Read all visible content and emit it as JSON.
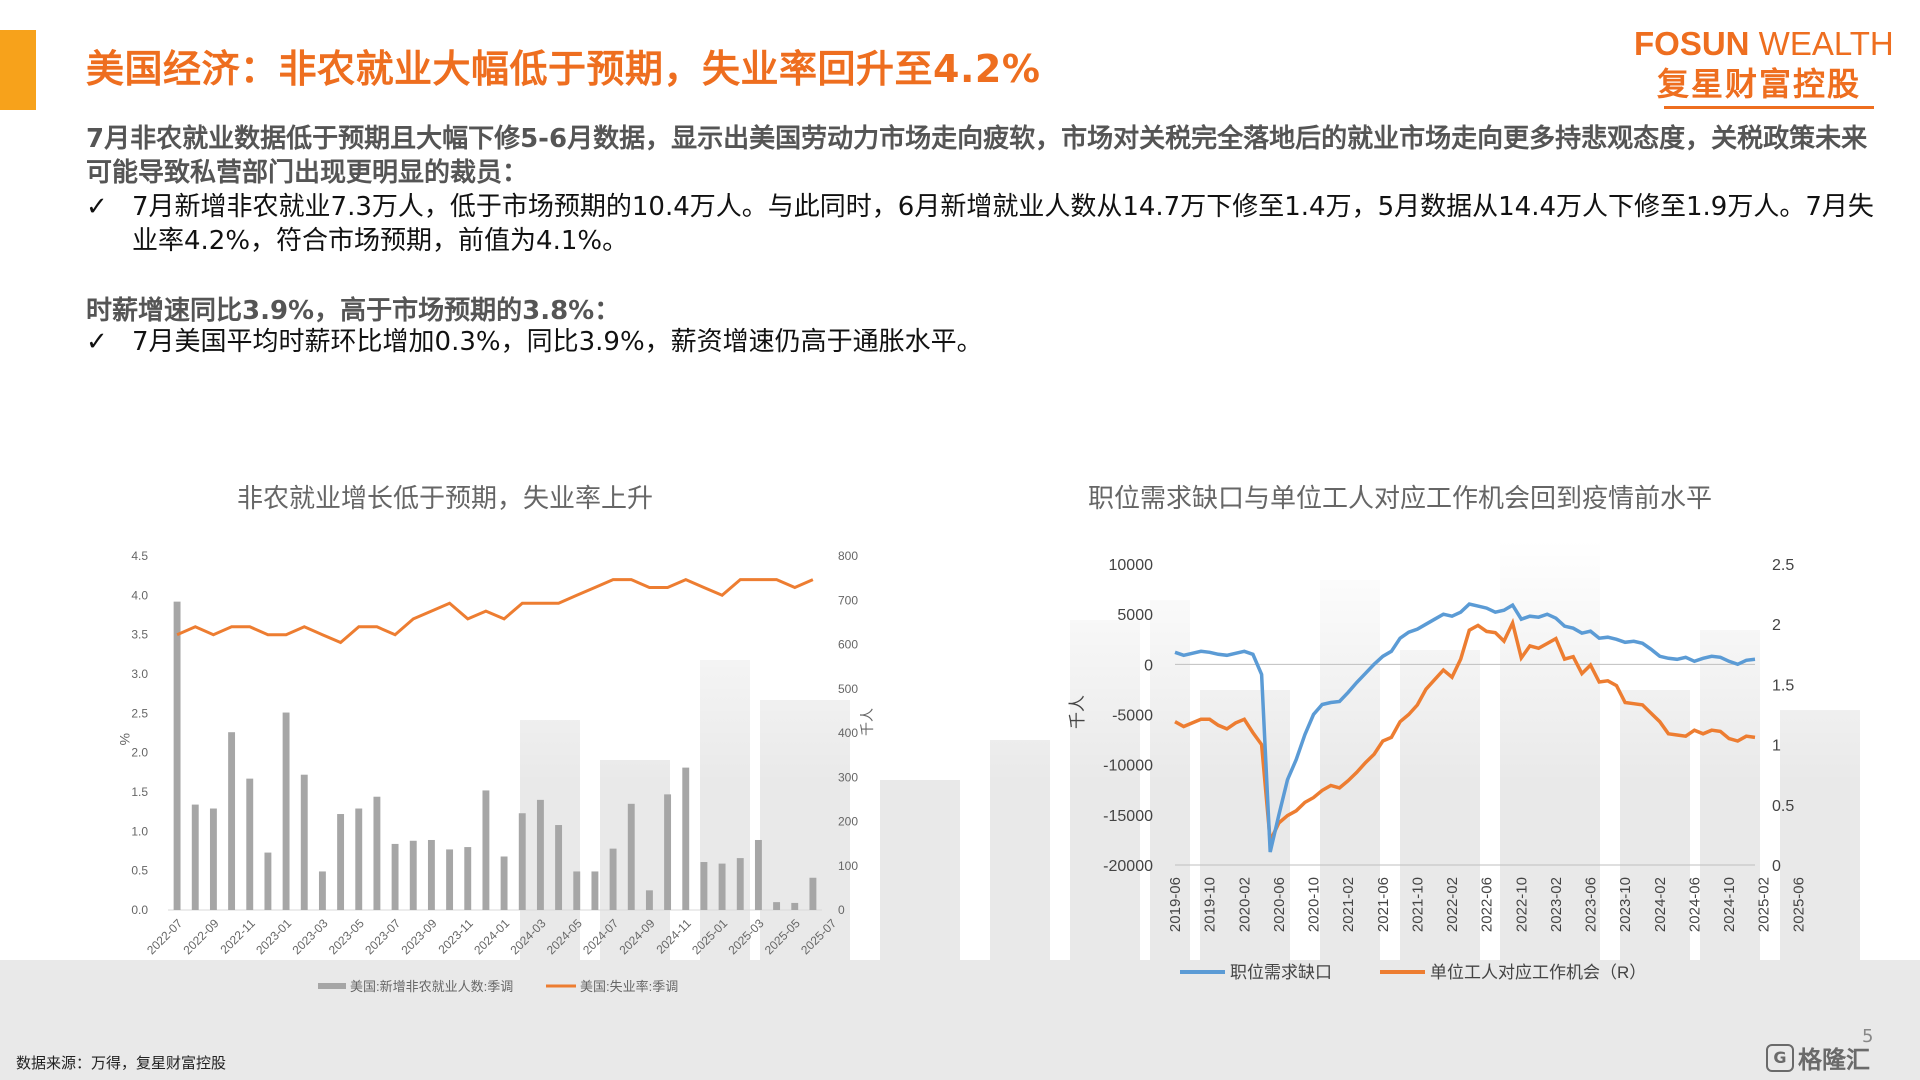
{
  "page": {
    "title": "美国经济：非农就业大幅低于预期，失业率回升至4.2%",
    "logo_en_bold": "FOSUN",
    "logo_en_light": "WEALTH",
    "logo_cn": "复星财富控股",
    "intro": "7月非农就业数据低于预期且大幅下修5-6月数据，显示出美国劳动力市场走向疲软，市场对关税完全落地后的就业市场走向更多持悲观态度，关税政策未来可能导致私营部门出现更明显的裁员：",
    "bullet_mark": "✓",
    "bullet1": "7月新增非农就业7.3万人，低于市场预期的10.4万人。与此同时，6月新增就业人数从14.7万下修至1.4万，5月数据从14.4万人下修至1.9万人。7月失业率4.2%，符合市场预期，前值为4.1%。",
    "sub_heading": "时薪增速同比3.9%，高于市场预期的3.8%：",
    "bullet2": "7月美国平均时薪环比增加0.3%，同比3.9%，薪资增速仍高于通胀水平。",
    "footer_note": "数据来源：万得，复星财富控股",
    "page_number": "5",
    "watermark_text": "格隆汇",
    "watermark_icon": "G"
  },
  "colors": {
    "orange": "#ed7d31",
    "blue": "#5b9bd5",
    "gray_bar": "#a6a6a6",
    "title_orange": "#ee6e1f"
  },
  "chart_data": [
    {
      "type": "bar+line",
      "title": "非农就业增长低于预期，失业率上升",
      "ylabel_left": "%",
      "ylabel_right": "千人",
      "ylim_left": [
        0,
        4.5
      ],
      "ylim_right": [
        0,
        800
      ],
      "left_ticks": [
        "0.0",
        "0.5",
        "1.0",
        "1.5",
        "2.0",
        "2.5",
        "3.0",
        "3.5",
        "4.0",
        "4.5"
      ],
      "right_ticks": [
        "0",
        "100",
        "200",
        "300",
        "400",
        "500",
        "600",
        "700",
        "800"
      ],
      "x_tick_labels": [
        "2022-07",
        "2022-09",
        "2022-11",
        "2023-01",
        "2023-03",
        "2023-05",
        "2023-07",
        "2023-09",
        "2023-11",
        "2024-01",
        "2024-03",
        "2024-05",
        "2024-07",
        "2024-09",
        "2024-11",
        "2025-01",
        "2025-03",
        "2025-05",
        "2025-07"
      ],
      "series": [
        {
          "name": "美国:新增非农就业人数:季调",
          "kind": "bar",
          "axis": "left",
          "values": [
            3.92,
            1.34,
            1.29,
            2.26,
            1.67,
            0.73,
            2.51,
            1.72,
            0.49,
            1.22,
            1.29,
            1.44,
            0.84,
            0.88,
            0.89,
            0.77,
            0.8,
            1.52,
            0.68,
            1.23,
            1.4,
            1.08,
            0.49,
            0.49,
            0.78,
            1.35,
            0.25,
            1.47,
            1.81,
            0.61,
            0.59,
            0.66,
            0.89,
            0.1,
            0.09,
            0.41
          ]
        },
        {
          "name": "美国:失业率:季调",
          "kind": "line",
          "axis": "left",
          "values": [
            3.5,
            3.6,
            3.5,
            3.6,
            3.6,
            3.5,
            3.5,
            3.6,
            3.5,
            3.4,
            3.6,
            3.6,
            3.5,
            3.7,
            3.8,
            3.9,
            3.7,
            3.8,
            3.7,
            3.9,
            3.9,
            3.9,
            4.0,
            4.1,
            4.2,
            4.2,
            4.1,
            4.1,
            4.2,
            4.1,
            4.0,
            4.2,
            4.2,
            4.2,
            4.1,
            4.2
          ]
        }
      ]
    },
    {
      "type": "line",
      "title": "职位需求缺口与单位工人对应工作机会回到疫情前水平",
      "ylabel_left": "千人",
      "ylim_left": [
        -20000,
        10000
      ],
      "ylim_right": [
        0,
        2.5
      ],
      "left_ticks": [
        "10000",
        "5000",
        "0",
        "-5000",
        "-10000",
        "-15000",
        "-20000"
      ],
      "right_ticks": [
        "2.5",
        "2",
        "1.5",
        "1",
        "0.5",
        "0"
      ],
      "x_tick_labels": [
        "2019-06",
        "2019-10",
        "2020-02",
        "2020-06",
        "2020-10",
        "2021-02",
        "2021-06",
        "2021-10",
        "2022-02",
        "2022-06",
        "2022-10",
        "2023-02",
        "2023-06",
        "2023-10",
        "2024-02",
        "2024-06",
        "2024-10",
        "2025-02",
        "2025-06"
      ],
      "series": [
        {
          "name": "职位需求缺口",
          "axis": "left",
          "values": [
            1200,
            900,
            1100,
            1300,
            1200,
            1000,
            900,
            1100,
            1300,
            1000,
            -1000,
            -18700,
            -15000,
            -11500,
            -9500,
            -7000,
            -5000,
            -4000,
            -3800,
            -3700,
            -2800,
            -1800,
            -900,
            0,
            800,
            1300,
            2600,
            3200,
            3500,
            4000,
            4500,
            5000,
            4800,
            5200,
            6000,
            5800,
            5600,
            5200,
            5400,
            5900,
            4500,
            4800,
            4700,
            5000,
            4600,
            3800,
            3600,
            3100,
            3300,
            2600,
            2700,
            2500,
            2200,
            2300,
            2100,
            1500,
            800,
            600,
            500,
            700,
            300,
            600,
            800,
            700,
            300,
            0,
            400,
            500
          ]
        },
        {
          "name": "单位工人对应工作机会（R）",
          "axis": "right",
          "values": [
            1.19,
            1.15,
            1.18,
            1.21,
            1.21,
            1.16,
            1.13,
            1.18,
            1.21,
            1.1,
            1.0,
            0.2,
            0.35,
            0.41,
            0.45,
            0.52,
            0.56,
            0.62,
            0.66,
            0.64,
            0.7,
            0.77,
            0.85,
            0.92,
            1.03,
            1.06,
            1.19,
            1.25,
            1.33,
            1.46,
            1.54,
            1.62,
            1.56,
            1.71,
            1.95,
            1.99,
            1.94,
            1.93,
            1.86,
            2.01,
            1.72,
            1.82,
            1.8,
            1.84,
            1.88,
            1.71,
            1.73,
            1.59,
            1.66,
            1.52,
            1.53,
            1.49,
            1.35,
            1.34,
            1.33,
            1.26,
            1.19,
            1.09,
            1.08,
            1.07,
            1.12,
            1.09,
            1.12,
            1.11,
            1.05,
            1.03,
            1.07,
            1.06
          ]
        }
      ]
    }
  ]
}
